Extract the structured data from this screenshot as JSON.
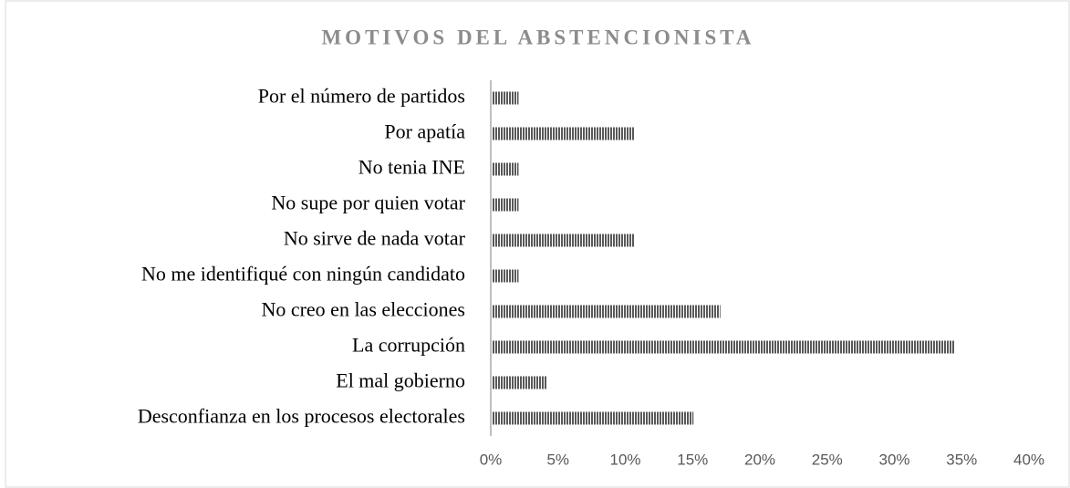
{
  "chart_data": {
    "type": "barh",
    "title": "MOTIVOS DEL ABSTENCIONISTA",
    "categories": [
      "Por el número de partidos",
      "Por apatía",
      "No tenia INE",
      "No supe por quien votar",
      "No sirve de nada votar",
      "No me identifiqué con ningún candidato",
      "No creo en las elecciones",
      "La corrupción",
      "El mal gobierno",
      "Desconfianza en los procesos electorales"
    ],
    "values": [
      2,
      10.6,
      2,
      2,
      10.6,
      2,
      17,
      34.4,
      4.1,
      15
    ],
    "color": "#595959",
    "xlim": [
      0,
      40
    ],
    "xticks": [
      {
        "value": 0,
        "label": "0%"
      },
      {
        "value": 5,
        "label": "5%"
      },
      {
        "value": 10,
        "label": "10%"
      },
      {
        "value": 15,
        "label": "15%"
      },
      {
        "value": 20,
        "label": "20%"
      },
      {
        "value": 25,
        "label": "25%"
      },
      {
        "value": 30,
        "label": "30%"
      },
      {
        "value": 35,
        "label": "35%"
      },
      {
        "value": 40,
        "label": "40%"
      }
    ],
    "grid": false
  }
}
